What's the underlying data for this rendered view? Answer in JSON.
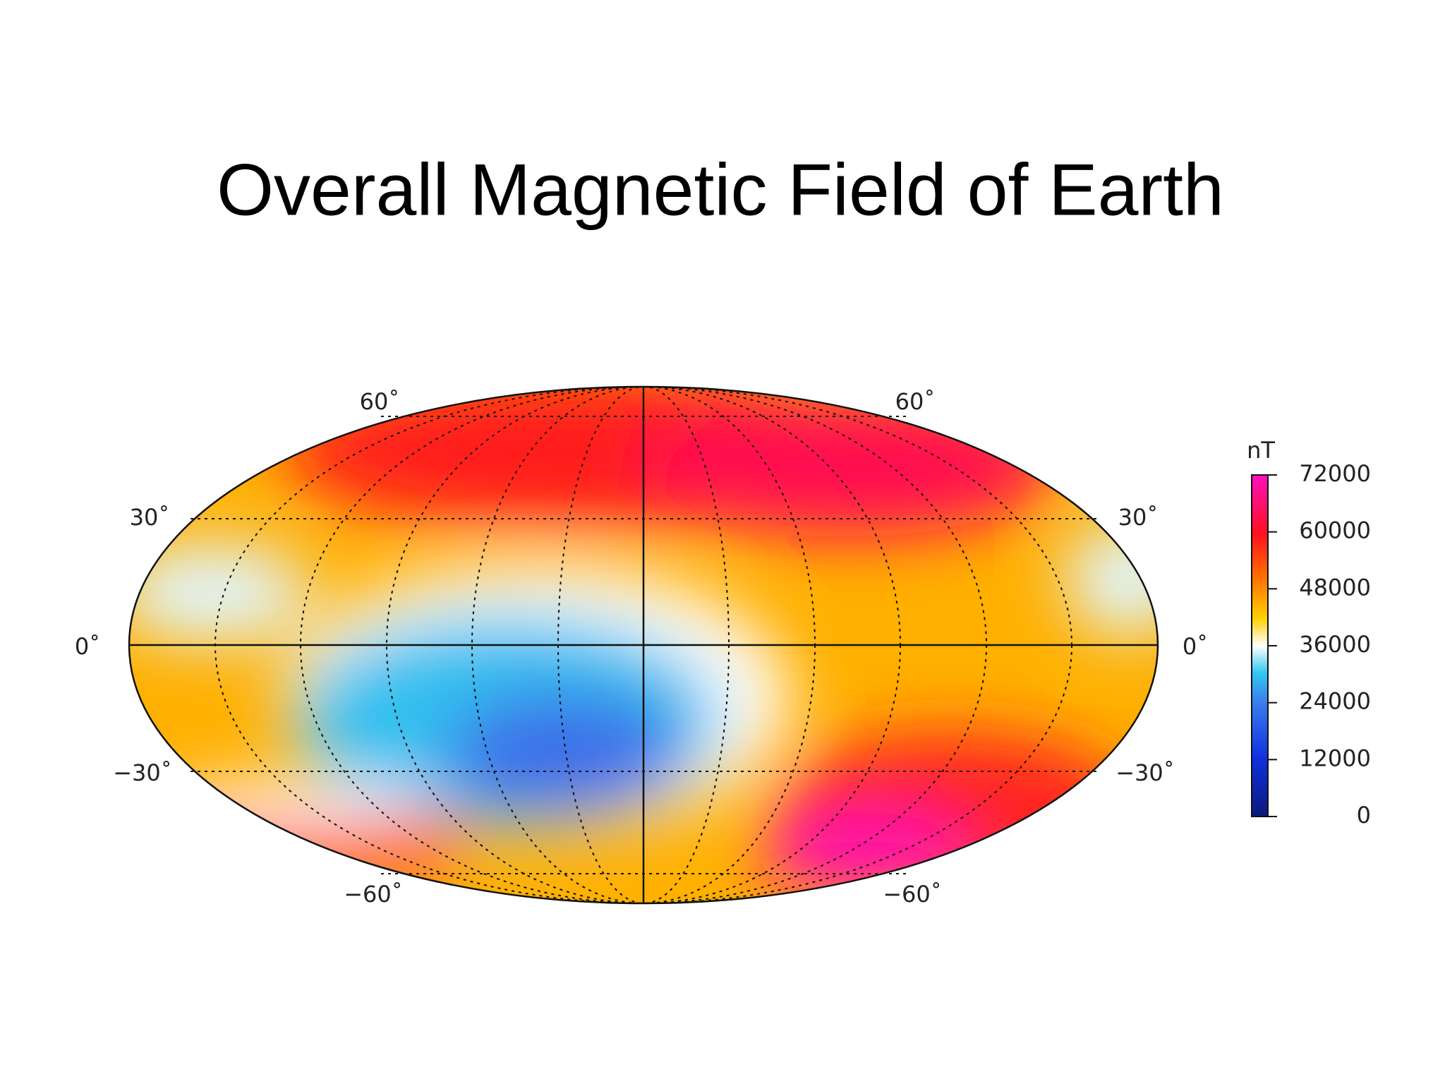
{
  "title": "Overall Magnetic Field of Earth",
  "map": {
    "top_labels": [
      "60˚",
      "60˚"
    ],
    "left_labels": [
      "30˚",
      "0˚",
      "−30˚"
    ],
    "right_labels": [
      "30˚",
      "0˚",
      "−30˚"
    ],
    "bottom_labels": [
      "−60˚",
      "−60˚"
    ]
  },
  "colorbar": {
    "unit": "nT",
    "range": [
      0,
      72000
    ],
    "ticks": [
      72000,
      60000,
      48000,
      36000,
      24000,
      12000,
      0
    ]
  }
}
